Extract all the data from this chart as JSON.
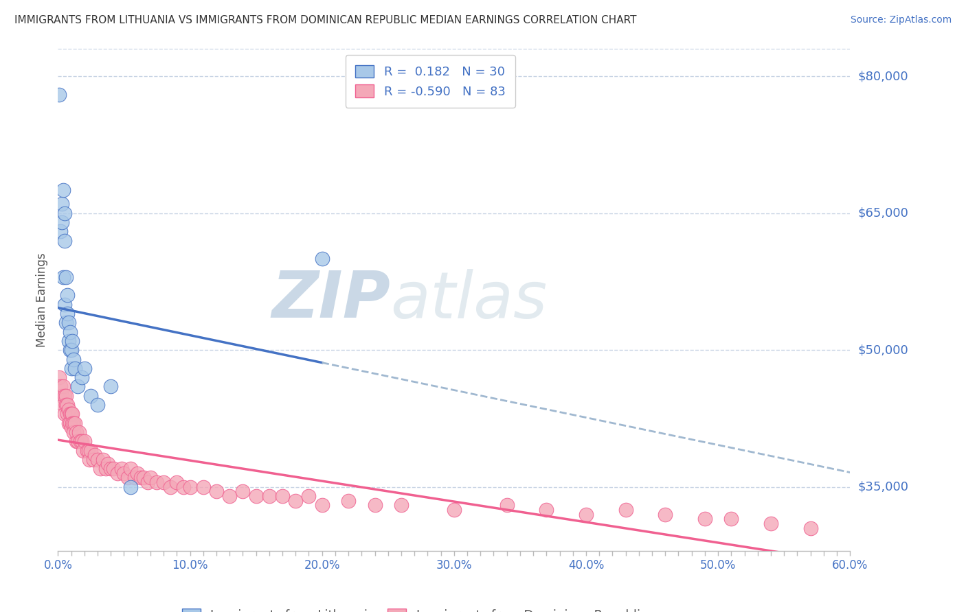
{
  "title": "IMMIGRANTS FROM LITHUANIA VS IMMIGRANTS FROM DOMINICAN REPUBLIC MEDIAN EARNINGS CORRELATION CHART",
  "source": "Source: ZipAtlas.com",
  "xlabel_lithuania": "Immigrants from Lithuania",
  "xlabel_dominican": "Immigrants from Dominican Republic",
  "ylabel": "Median Earnings",
  "r_lithuania": 0.182,
  "n_lithuania": 30,
  "r_dominican": -0.59,
  "n_dominican": 83,
  "xlim": [
    0.0,
    0.6
  ],
  "ylim": [
    28000,
    83000
  ],
  "yticks": [
    35000,
    50000,
    65000,
    80000
  ],
  "ytick_labels": [
    "$35,000",
    "$50,000",
    "$65,000",
    "$80,000"
  ],
  "xtick_labels": [
    "0.0%",
    "",
    "",
    "",
    "",
    "",
    "",
    "",
    "",
    "",
    "10.0%",
    "",
    "",
    "",
    "",
    "",
    "",
    "",
    "",
    "",
    "20.0%",
    "",
    "",
    "",
    "",
    "",
    "",
    "",
    "",
    "",
    "30.0%",
    "",
    "",
    "",
    "",
    "",
    "",
    "",
    "",
    "",
    "40.0%",
    "",
    "",
    "",
    "",
    "",
    "",
    "",
    "",
    "",
    "50.0%",
    "",
    "",
    "",
    "",
    "",
    "",
    "",
    "",
    "",
    "60.0%"
  ],
  "color_lithuania": "#A8C8E8",
  "color_dominican": "#F4A8B8",
  "trendline_lithuania": "#4472C4",
  "trendline_dominican": "#F06090",
  "trendline_dashed_color": "#A0B8D0",
  "background_color": "#FFFFFF",
  "grid_color": "#C8D4E4",
  "watermark_zip": "ZIP",
  "watermark_atlas": "atlas",
  "lithuania_x": [
    0.001,
    0.002,
    0.003,
    0.003,
    0.004,
    0.004,
    0.005,
    0.005,
    0.005,
    0.006,
    0.006,
    0.007,
    0.007,
    0.008,
    0.008,
    0.009,
    0.009,
    0.01,
    0.01,
    0.011,
    0.012,
    0.013,
    0.015,
    0.018,
    0.02,
    0.025,
    0.03,
    0.04,
    0.055,
    0.2
  ],
  "lithuania_y": [
    78000,
    63000,
    66000,
    64000,
    67500,
    58000,
    65000,
    62000,
    55000,
    58000,
    53000,
    56000,
    54000,
    53000,
    51000,
    50000,
    52000,
    50000,
    48000,
    51000,
    49000,
    48000,
    46000,
    47000,
    48000,
    45000,
    44000,
    46000,
    35000,
    60000
  ],
  "dominican_x": [
    0.001,
    0.002,
    0.003,
    0.004,
    0.004,
    0.005,
    0.005,
    0.006,
    0.006,
    0.007,
    0.007,
    0.008,
    0.008,
    0.009,
    0.009,
    0.01,
    0.01,
    0.011,
    0.011,
    0.012,
    0.012,
    0.013,
    0.014,
    0.014,
    0.015,
    0.016,
    0.017,
    0.018,
    0.019,
    0.02,
    0.022,
    0.023,
    0.024,
    0.025,
    0.027,
    0.028,
    0.03,
    0.032,
    0.034,
    0.036,
    0.038,
    0.04,
    0.042,
    0.045,
    0.048,
    0.05,
    0.053,
    0.055,
    0.058,
    0.06,
    0.063,
    0.065,
    0.068,
    0.07,
    0.075,
    0.08,
    0.085,
    0.09,
    0.095,
    0.1,
    0.11,
    0.12,
    0.13,
    0.14,
    0.15,
    0.16,
    0.17,
    0.18,
    0.19,
    0.2,
    0.22,
    0.24,
    0.26,
    0.3,
    0.34,
    0.37,
    0.4,
    0.43,
    0.46,
    0.49,
    0.51,
    0.54,
    0.57
  ],
  "dominican_y": [
    47000,
    46000,
    45000,
    46000,
    44000,
    45000,
    43000,
    45000,
    44000,
    43000,
    44000,
    42000,
    43500,
    43000,
    42000,
    43000,
    41500,
    43000,
    42000,
    42000,
    41000,
    42000,
    40000,
    41000,
    40000,
    41000,
    40000,
    40000,
    39000,
    40000,
    39000,
    39000,
    38000,
    39000,
    38000,
    38500,
    38000,
    37000,
    38000,
    37000,
    37500,
    37000,
    37000,
    36500,
    37000,
    36500,
    36000,
    37000,
    36000,
    36500,
    36000,
    36000,
    35500,
    36000,
    35500,
    35500,
    35000,
    35500,
    35000,
    35000,
    35000,
    34500,
    34000,
    34500,
    34000,
    34000,
    34000,
    33500,
    34000,
    33000,
    33500,
    33000,
    33000,
    32500,
    33000,
    32500,
    32000,
    32500,
    32000,
    31500,
    31500,
    31000,
    30500
  ]
}
